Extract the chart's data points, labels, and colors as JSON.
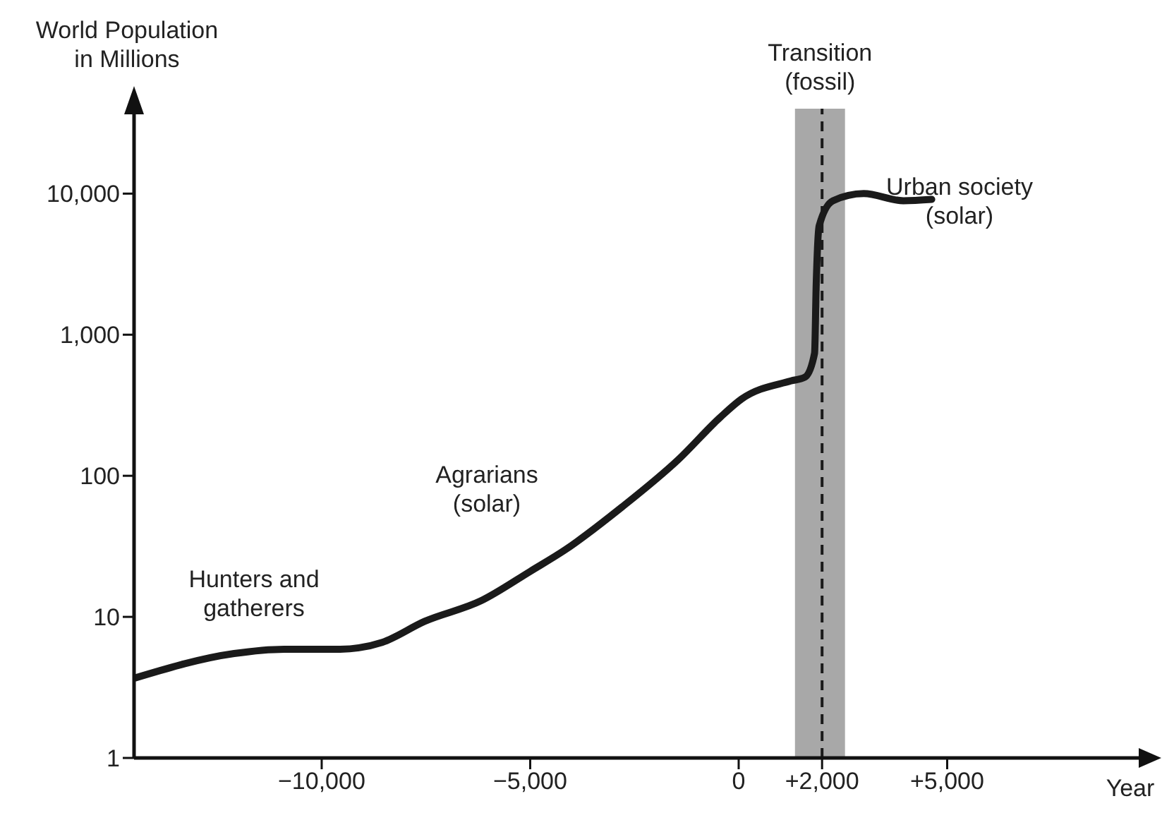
{
  "chart_data": {
    "type": "line",
    "ylabel": "World Population\nin Millions",
    "xlabel": "Year",
    "x": [
      -14460,
      -12100,
      -10900,
      -9560,
      -8550,
      -7530,
      -6180,
      -5000,
      -4150,
      -2800,
      -1450,
      -440,
      70,
      1250,
      1590,
      1820,
      1860,
      1930,
      2260,
      3000,
      3950,
      4630
    ],
    "series": [
      {
        "color": "#1a1a1a",
        "values": [
          3.7,
          5.5,
          5.9,
          5.9,
          6.6,
          9.3,
          13,
          21,
          30,
          60,
          130,
          260,
          350,
          470,
          500,
          740,
          2300,
          5900,
          8900,
          10000,
          8900,
          9100
        ]
      }
    ],
    "log": "y",
    "xlim": [
      -14500,
      10000
    ],
    "ylim": [
      1,
      40000
    ],
    "xticks": [
      {
        "value": -10000,
        "label": "−10,000"
      },
      {
        "value": -5000,
        "label": "−5,000"
      },
      0,
      {
        "value": 2000,
        "label": "+2,000"
      },
      {
        "value": 5000,
        "label": "+5,000"
      }
    ],
    "yticks": [
      1,
      10,
      100,
      {
        "value": 1000,
        "label": "1,000"
      },
      {
        "value": 10000,
        "label": "10,000"
      }
    ],
    "bands": [
      {
        "axis": "x",
        "from": 1350,
        "to": 2550,
        "label": "Transition\n(fossil)",
        "color": "#a8a8a8"
      }
    ],
    "ref_lines": [
      {
        "axis": "x",
        "value": 2000,
        "color": "#1a1a1a",
        "line_style": "dashed"
      }
    ],
    "annotations": [
      "Hunters and\ngatherers",
      "Agrarians\n(solar)",
      "Urban society\n(solar)"
    ]
  }
}
